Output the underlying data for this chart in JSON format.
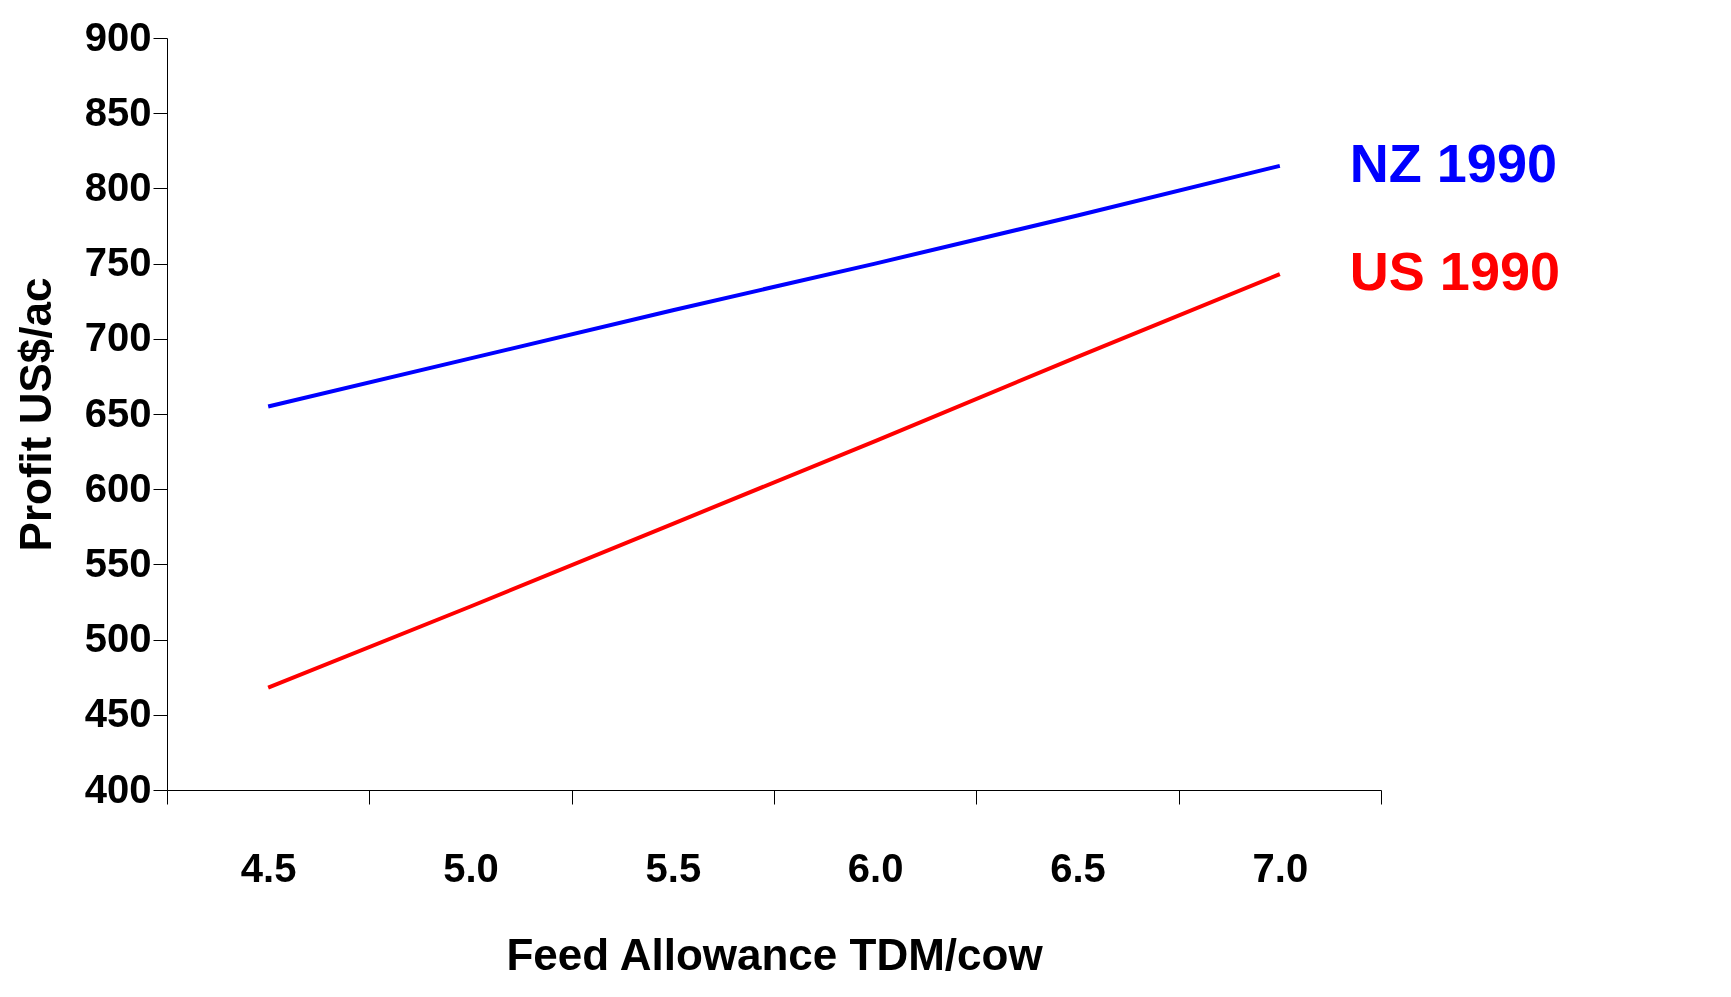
{
  "chart_data": {
    "type": "line",
    "xlabel": "Feed Allowance TDM/cow",
    "ylabel": "Profit US$/ac",
    "categories": [
      "4.5",
      "5.0",
      "5.5",
      "6.0",
      "6.5",
      "7.0"
    ],
    "series": [
      {
        "name": "NZ 1990",
        "color": "#0000ff",
        "values": [
          655,
          687,
          719,
          750,
          782,
          815
        ]
      },
      {
        "name": "US 1990",
        "color": "#ff0000",
        "values": [
          468,
          522,
          577,
          632,
          688,
          743
        ]
      }
    ],
    "ylim": [
      400,
      900
    ],
    "yticks": [
      400,
      450,
      500,
      550,
      600,
      650,
      700,
      750,
      800,
      850,
      900
    ],
    "grid": false,
    "legend": false,
    "marker": "none",
    "line_style": "solid"
  }
}
